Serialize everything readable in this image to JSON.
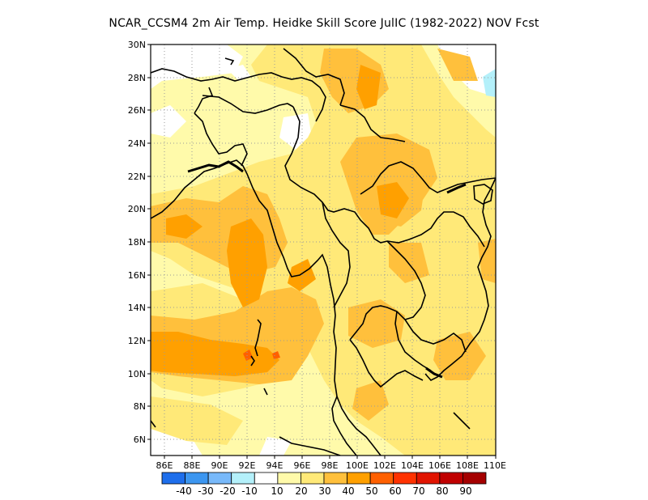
{
  "title": "NCAR_CCSM4  2m Air Temp. Heidke Skill Score JulIC (1982-2022) NOV Fcst",
  "map": {
    "lon_labels": [
      "86E",
      "88E",
      "90E",
      "92E",
      "94E",
      "96E",
      "98E",
      "100E",
      "102E",
      "104E",
      "106E",
      "108E",
      "110E"
    ],
    "lat_labels": [
      "30N",
      "28N",
      "26N",
      "24N",
      "22N",
      "20N",
      "18N",
      "16N",
      "14N",
      "12N",
      "10N",
      "8N",
      "6N"
    ],
    "lon_range": [
      85,
      110
    ],
    "lat_range": [
      5,
      30
    ],
    "grid": "dotted"
  },
  "colorbar": {
    "labels": [
      "-40",
      "-30",
      "-20",
      "-10",
      "10",
      "20",
      "30",
      "40",
      "50",
      "60",
      "70",
      "80",
      "90"
    ],
    "colors": [
      "#1e6eeb",
      "#3c96f0",
      "#78b9fa",
      "#b4f0fa",
      "#ffffff",
      "#fffaaa",
      "#ffe978",
      "#ffc03c",
      "#ffa000",
      "#ff6000",
      "#ff3200",
      "#e11400",
      "#c00000",
      "#a50000"
    ]
  }
}
